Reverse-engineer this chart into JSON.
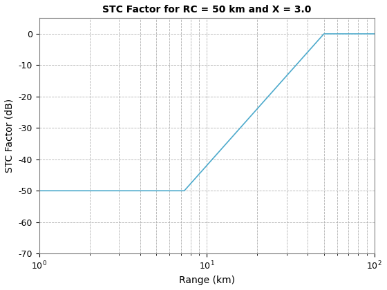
{
  "title": "STC Factor for RC = 50 km and X = 3.0",
  "xlabel": "Range (km)",
  "ylabel": "STC Factor (dB)",
  "RC": 50.0,
  "X": 3.0,
  "xlim": [
    1,
    100
  ],
  "ylim": [
    -70,
    5
  ],
  "yticks": [
    0,
    -10,
    -20,
    -30,
    -40,
    -50,
    -60,
    -70
  ],
  "line_color": "#4daacc",
  "line_width": 1.2,
  "background_color": "#ffffff",
  "grid_color": "#b0b0b0",
  "grid_style": "--"
}
